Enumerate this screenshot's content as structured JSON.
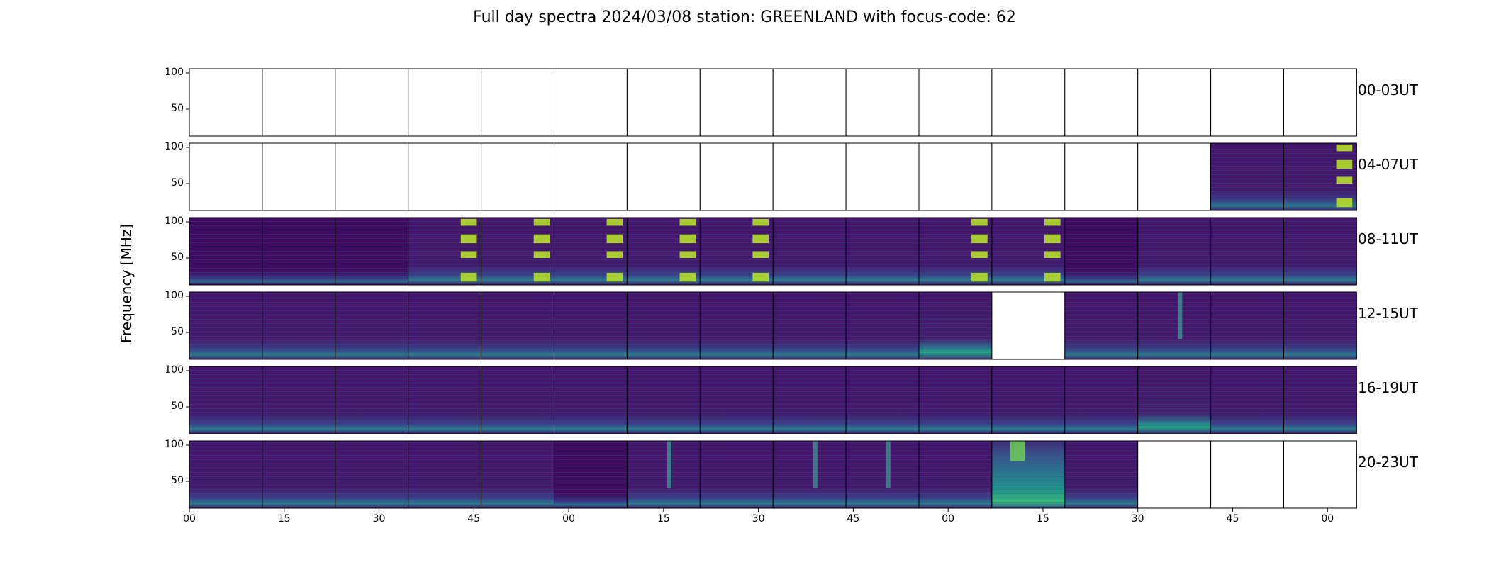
{
  "chart_data": {
    "type": "heatmap",
    "title": "Full day spectra 2024/03/08 station: GREENLAND with focus-code: 62",
    "ylabel": "Frequency [MHz]",
    "ytick_labels": [
      "100",
      "50"
    ],
    "xtick_labels": [
      "00",
      "15",
      "30",
      "45",
      "00",
      "15",
      "30",
      "45",
      "00",
      "15",
      "30",
      "45",
      "00",
      "15",
      "30",
      "45"
    ],
    "colormap": "viridis",
    "rows": [
      {
        "label": "00-03UT",
        "cells": [
          "empty",
          "empty",
          "empty",
          "empty",
          "empty",
          "empty",
          "empty",
          "empty",
          "empty",
          "empty",
          "empty",
          "empty",
          "empty",
          "empty",
          "empty",
          "empty"
        ]
      },
      {
        "label": "04-07UT",
        "cells": [
          "empty",
          "empty",
          "empty",
          "empty",
          "empty",
          "empty",
          "empty",
          "empty",
          "empty",
          "empty",
          "empty",
          "empty",
          "empty",
          "empty",
          "low",
          "burst-late"
        ]
      },
      {
        "label": "08-11UT",
        "cells": [
          "dark",
          "dark",
          "dark",
          "burst-late",
          "burst-late",
          "burst-late",
          "burst-late",
          "burst-late",
          "low",
          "low",
          "burst-late",
          "burst-late",
          "dark",
          "low",
          "low",
          "low"
        ]
      },
      {
        "label": "12-15UT",
        "cells": [
          "low",
          "low",
          "low",
          "low",
          "low",
          "low",
          "low",
          "low",
          "low",
          "low",
          "active",
          "empty",
          "low",
          "spike",
          "low",
          "low"
        ]
      },
      {
        "label": "16-19UT",
        "cells": [
          "low",
          "low",
          "low",
          "low",
          "low",
          "low",
          "low",
          "low",
          "low",
          "low",
          "low",
          "low",
          "low",
          "active",
          "low",
          "low"
        ]
      },
      {
        "label": "20-23UT",
        "cells": [
          "low",
          "low",
          "low",
          "low",
          "low",
          "dark",
          "spike",
          "low",
          "spike",
          "spike",
          "low",
          "storm",
          "low",
          "empty",
          "empty",
          "empty"
        ]
      }
    ]
  }
}
